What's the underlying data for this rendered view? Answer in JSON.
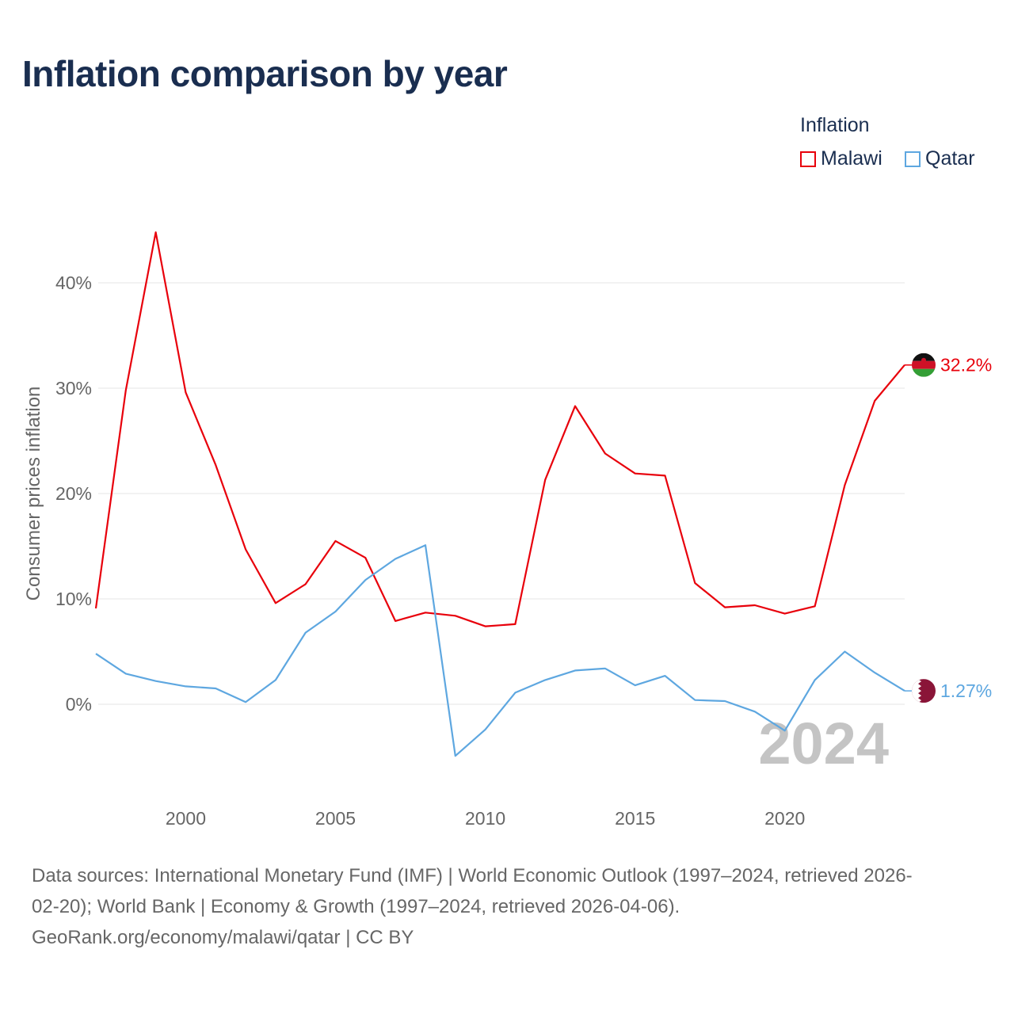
{
  "title": "Inflation comparison by year",
  "legend": {
    "title": "Inflation",
    "items": [
      {
        "name": "Malawi",
        "color": "#e8000b"
      },
      {
        "name": "Qatar",
        "color": "#5ea7e0"
      }
    ]
  },
  "chart_data": {
    "type": "line",
    "title": "Inflation comparison by year",
    "xlabel": "",
    "ylabel": "Consumer prices inflation",
    "xlim": [
      1997,
      2024
    ],
    "ylim": [
      -9,
      46
    ],
    "y_ticks": [
      0,
      10,
      20,
      30,
      40
    ],
    "y_tick_labels": [
      "0%",
      "10%",
      "20%",
      "30%",
      "40%"
    ],
    "x_ticks": [
      2000,
      2005,
      2010,
      2015,
      2020
    ],
    "x_tick_labels": [
      "2000",
      "2005",
      "2010",
      "2015",
      "2020"
    ],
    "grid": true,
    "year_watermark": "2024",
    "x": [
      1997,
      1998,
      1999,
      2000,
      2001,
      2002,
      2003,
      2004,
      2005,
      2006,
      2007,
      2008,
      2009,
      2010,
      2011,
      2012,
      2013,
      2014,
      2015,
      2016,
      2017,
      2018,
      2019,
      2020,
      2021,
      2022,
      2023,
      2024
    ],
    "series": [
      {
        "name": "Malawi",
        "color": "#e8000b",
        "end_label": "32.2%",
        "values": [
          9.1,
          29.8,
          44.8,
          29.6,
          22.7,
          14.7,
          9.6,
          11.4,
          15.5,
          13.9,
          7.9,
          8.7,
          8.4,
          7.4,
          7.6,
          21.3,
          28.3,
          23.8,
          21.9,
          21.7,
          11.5,
          9.2,
          9.4,
          8.6,
          9.3,
          20.8,
          28.8,
          32.2
        ]
      },
      {
        "name": "Qatar",
        "color": "#5ea7e0",
        "end_label": "1.27%",
        "values": [
          4.8,
          2.9,
          2.2,
          1.7,
          1.5,
          0.2,
          2.3,
          6.8,
          8.8,
          11.8,
          13.8,
          15.1,
          -4.9,
          -2.4,
          1.1,
          2.3,
          3.2,
          3.4,
          1.8,
          2.7,
          0.4,
          0.3,
          -0.7,
          -2.5,
          2.3,
          5.0,
          3.0,
          1.27
        ]
      }
    ]
  },
  "footer": {
    "line1": "Data sources: International Monetary Fund (IMF) | World Economic Outlook (1997–2024, retrieved 2026-",
    "line2": "02-20); World Bank | Economy & Growth (1997–2024, retrieved 2026-04-06).",
    "line3": "GeoRank.org/economy/malawi/qatar | CC BY"
  },
  "flags": {
    "malawi": "flag-malawi-icon",
    "qatar": "flag-qatar-icon"
  }
}
